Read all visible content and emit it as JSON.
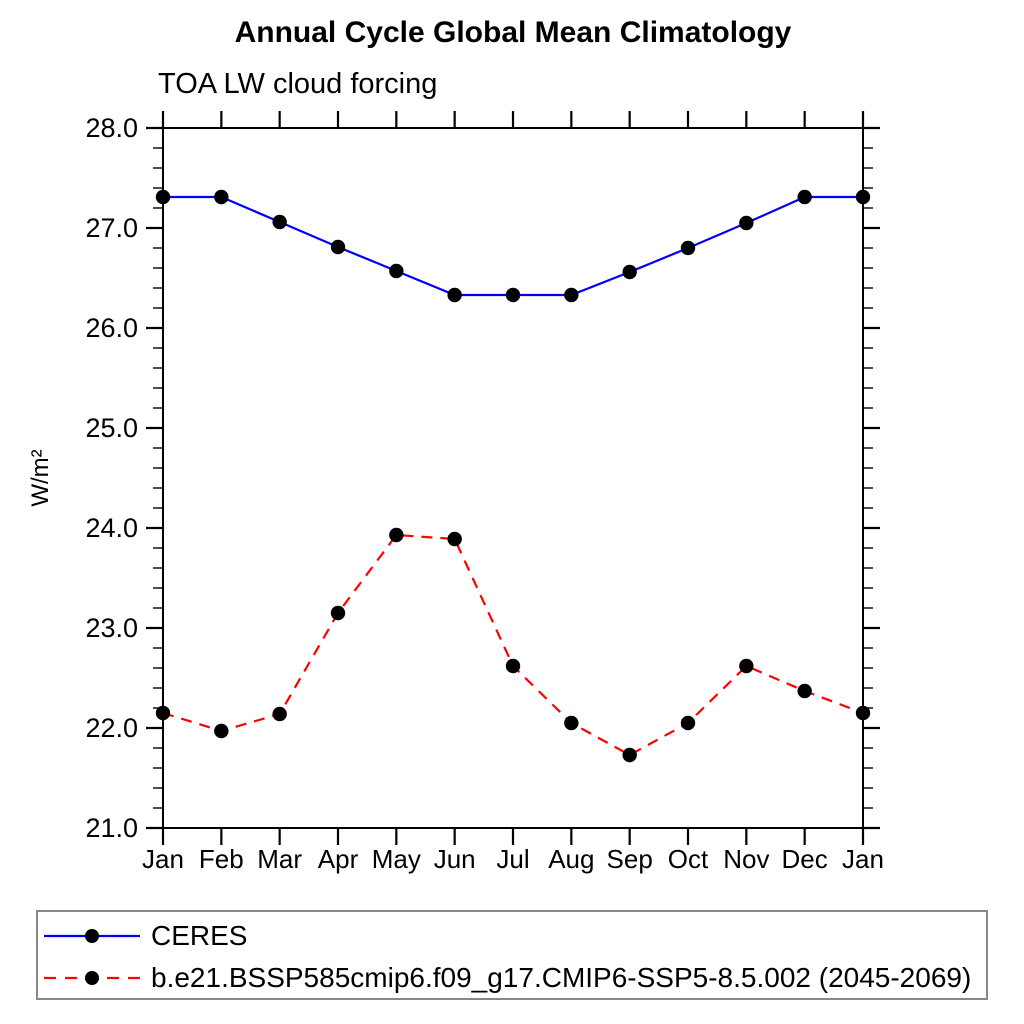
{
  "chart": {
    "title": "Annual Cycle Global Mean Climatology",
    "subtitle": "TOA LW cloud forcing"
  },
  "chart_data": {
    "type": "line",
    "title": "Annual Cycle Global Mean Climatology",
    "subtitle": "TOA LW cloud forcing",
    "ylabel": "W/m²",
    "xlabel": "",
    "categories": [
      "Jan",
      "Feb",
      "Mar",
      "Apr",
      "May",
      "Jun",
      "Jul",
      "Aug",
      "Sep",
      "Oct",
      "Nov",
      "Dec",
      "Jan"
    ],
    "series": [
      {
        "name": "CERES",
        "color": "#0000ff",
        "line_style": "solid",
        "marker": "filled-circle",
        "marker_color": "#000000",
        "values": [
          27.31,
          27.31,
          27.06,
          26.81,
          26.57,
          26.33,
          26.33,
          26.33,
          26.56,
          26.8,
          27.05,
          27.31,
          27.31
        ]
      },
      {
        "name": "b.e21.BSSP585cmip6.f09_g17.CMIP6-SSP5-8.5.002 (2045-2069)",
        "color": "#ff0000",
        "line_style": "dashed",
        "marker": "filled-circle",
        "marker_color": "#000000",
        "values": [
          22.15,
          21.97,
          22.14,
          23.15,
          23.93,
          23.89,
          22.62,
          22.05,
          21.73,
          22.05,
          22.62,
          22.37,
          22.15
        ]
      }
    ],
    "ylim": [
      21.0,
      28.0
    ],
    "ytick_step": 1.0,
    "yminor_step": 0.2,
    "ytick_labels": [
      "21.0",
      "22.0",
      "23.0",
      "24.0",
      "25.0",
      "26.0",
      "27.0",
      "28.0"
    ],
    "grid": false,
    "legend_position": "bottom",
    "frame": "box-with-outward-ticks"
  }
}
